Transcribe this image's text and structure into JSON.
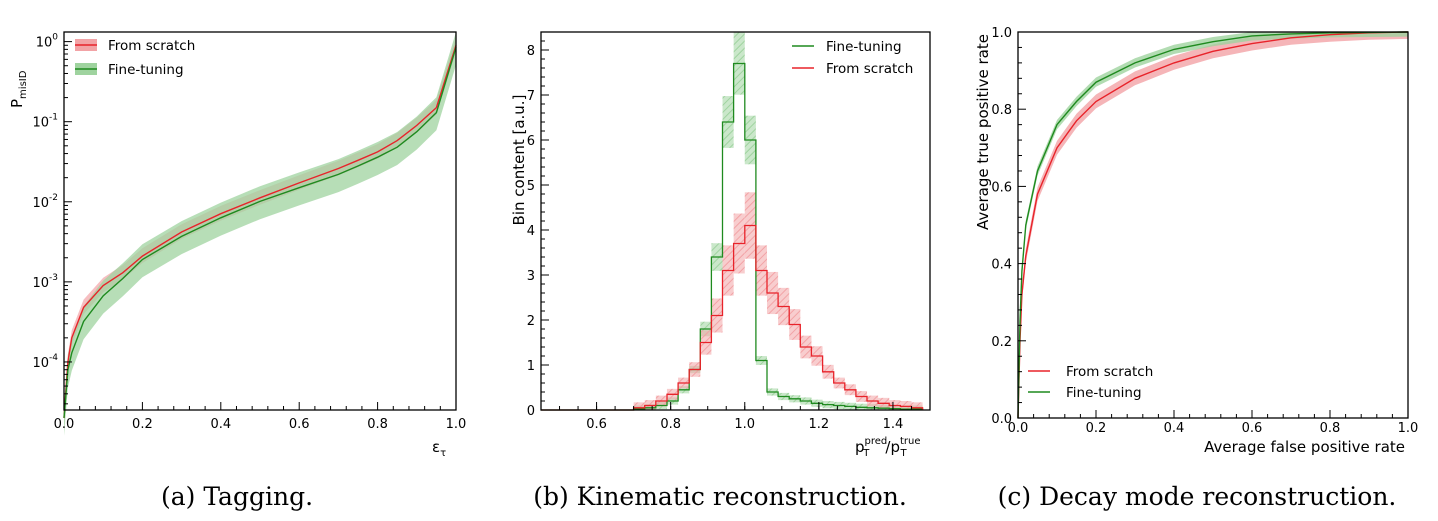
{
  "colors": {
    "red": "#e8232a",
    "red_band": "#f2a3a6",
    "green": "#1f8a1f",
    "green_band": "#9fd39f"
  },
  "chart_data": [
    {
      "id": "a",
      "type": "line",
      "caption": "(a) Tagging.",
      "xlabel": "ε_τ",
      "ylabel": "P_misID",
      "xlim": [
        0.0,
        1.0
      ],
      "ylim_log10": [
        -4.6,
        0.12
      ],
      "yscale": "log",
      "xticks": [
        "0.0",
        "0.2",
        "0.4",
        "0.6",
        "0.8",
        "1.0"
      ],
      "yticks": [
        {
          "base": "10",
          "exp": "0",
          "pow": 0
        },
        {
          "base": "10",
          "exp": "-1",
          "pow": -1
        },
        {
          "base": "10",
          "exp": "-2",
          "pow": -2
        },
        {
          "base": "10",
          "exp": "-3",
          "pow": -3
        },
        {
          "base": "10",
          "exp": "-4",
          "pow": -4
        }
      ],
      "legend_position": "top-left",
      "series": [
        {
          "name": "From scratch",
          "color": "red",
          "x": [
            0.0,
            0.01,
            0.02,
            0.05,
            0.1,
            0.15,
            0.2,
            0.3,
            0.4,
            0.5,
            0.6,
            0.7,
            0.75,
            0.8,
            0.85,
            0.9,
            0.95,
            1.0
          ],
          "y": [
            2e-05,
            0.0001,
            0.0002,
            0.00048,
            0.0009,
            0.0013,
            0.0021,
            0.0042,
            0.0071,
            0.0112,
            0.0172,
            0.026,
            0.033,
            0.042,
            0.058,
            0.09,
            0.15,
            0.9
          ]
        },
        {
          "name": "Fine-tuning",
          "color": "green",
          "x": [
            0.0,
            0.01,
            0.02,
            0.05,
            0.1,
            0.15,
            0.2,
            0.3,
            0.4,
            0.5,
            0.6,
            0.7,
            0.75,
            0.8,
            0.85,
            0.9,
            0.95,
            1.0
          ],
          "y": [
            2e-05,
            8e-05,
            0.00013,
            0.00032,
            0.00067,
            0.0011,
            0.0019,
            0.0037,
            0.0063,
            0.0101,
            0.015,
            0.022,
            0.028,
            0.036,
            0.048,
            0.075,
            0.13,
            0.85
          ]
        }
      ]
    },
    {
      "id": "b",
      "type": "step",
      "caption": "(b) Kinematic reconstruction.",
      "ylabel": "Bin content [a.u.]",
      "xlabel_main": "p",
      "xlabel_sub": "T",
      "xlabel_sup1": "pred",
      "xlabel_sup2": "true",
      "xlim": [
        0.45,
        1.5
      ],
      "ylim": [
        0,
        8.4
      ],
      "xticks": [
        "0.6",
        "0.8",
        "1.0",
        "1.2",
        "1.4"
      ],
      "yticks": [
        "0",
        "1",
        "2",
        "3",
        "4",
        "5",
        "6",
        "7",
        "8"
      ],
      "legend_position": "top-right",
      "bin_edges": [
        0.7,
        0.73,
        0.76,
        0.79,
        0.82,
        0.85,
        0.88,
        0.91,
        0.94,
        0.97,
        1.0,
        1.03,
        1.06,
        1.09,
        1.12,
        1.15,
        1.18,
        1.21,
        1.24,
        1.27,
        1.3,
        1.33,
        1.36,
        1.39,
        1.42,
        1.45,
        1.48
      ],
      "series": [
        {
          "name": "Fine-tuning",
          "color": "green",
          "values": [
            0.02,
            0.05,
            0.1,
            0.2,
            0.45,
            0.9,
            1.8,
            3.4,
            6.4,
            7.7,
            6.0,
            1.1,
            0.4,
            0.3,
            0.25,
            0.2,
            0.15,
            0.12,
            0.1,
            0.08,
            0.06,
            0.05,
            0.04,
            0.03,
            0.02,
            0.02
          ]
        },
        {
          "name": "From scratch",
          "color": "red",
          "values": [
            0.05,
            0.1,
            0.2,
            0.35,
            0.6,
            0.9,
            1.5,
            2.1,
            3.1,
            3.7,
            4.1,
            3.1,
            2.6,
            2.3,
            1.9,
            1.4,
            1.2,
            0.85,
            0.6,
            0.45,
            0.3,
            0.2,
            0.15,
            0.1,
            0.08,
            0.05
          ]
        }
      ]
    },
    {
      "id": "c",
      "type": "line",
      "caption": "(c) Decay mode reconstruction.",
      "xlabel": "Average false positive rate",
      "ylabel": "Average true positive rate",
      "xlim": [
        0.0,
        1.0
      ],
      "ylim": [
        0.0,
        1.0
      ],
      "xticks": [
        "0.0",
        "0.2",
        "0.4",
        "0.6",
        "0.8",
        "1.0"
      ],
      "yticks": [
        "0.0",
        "0.2",
        "0.4",
        "0.6",
        "0.8",
        "1.0"
      ],
      "legend_position": "bottom-left",
      "series": [
        {
          "name": "From scratch",
          "color": "red",
          "x": [
            0.0,
            0.005,
            0.01,
            0.02,
            0.05,
            0.1,
            0.15,
            0.2,
            0.3,
            0.4,
            0.5,
            0.6,
            0.7,
            0.8,
            0.9,
            1.0
          ],
          "y": [
            0.0,
            0.2,
            0.32,
            0.42,
            0.58,
            0.7,
            0.77,
            0.82,
            0.88,
            0.92,
            0.95,
            0.97,
            0.985,
            0.993,
            0.998,
            1.0
          ]
        },
        {
          "name": "Fine-tuning",
          "color": "green",
          "x": [
            0.0,
            0.005,
            0.01,
            0.02,
            0.05,
            0.1,
            0.15,
            0.2,
            0.3,
            0.4,
            0.5,
            0.6,
            0.7,
            0.8,
            0.9,
            1.0
          ],
          "y": [
            0.0,
            0.25,
            0.38,
            0.5,
            0.64,
            0.76,
            0.82,
            0.87,
            0.92,
            0.955,
            0.975,
            0.99,
            0.995,
            0.998,
            0.999,
            1.0
          ]
        }
      ]
    }
  ]
}
